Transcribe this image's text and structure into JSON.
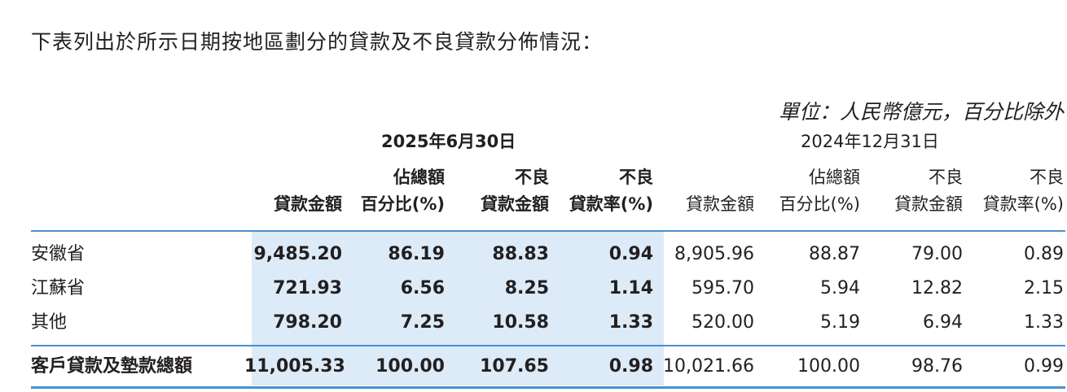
{
  "intro": "下表列出於所示日期按地區劃分的貸款及不良貸款分佈情況：",
  "unit": "單位：人民幣億元，百分比除外",
  "periods": {
    "current": "2025年6月30日",
    "previous": "2024年12月31日"
  },
  "headers": {
    "h1_line1": "",
    "h1_line2": "貸款金額",
    "h2_line1": "佔總額",
    "h2_line2": "百分比(%)",
    "h3_line1": "不良",
    "h3_line2": "貸款金額",
    "h4_line1": "不良",
    "h4_line2": "貸款率(%)"
  },
  "rows": [
    {
      "label": "安徽省",
      "v": [
        "9,485.20",
        "86.19",
        "88.83",
        "0.94",
        "8,905.96",
        "88.87",
        "79.00",
        "0.89"
      ]
    },
    {
      "label": "江蘇省",
      "v": [
        "721.93",
        "6.56",
        "8.25",
        "1.14",
        "595.70",
        "5.94",
        "12.82",
        "2.15"
      ]
    },
    {
      "label": "其他",
      "v": [
        "798.20",
        "7.25",
        "10.58",
        "1.33",
        "520.00",
        "5.19",
        "6.94",
        "1.33"
      ]
    }
  ],
  "total": {
    "label": "客戶貸款及墊款總額",
    "v": [
      "11,005.33",
      "100.00",
      "107.65",
      "0.98",
      "10,021.66",
      "100.00",
      "98.76",
      "0.99"
    ]
  }
}
